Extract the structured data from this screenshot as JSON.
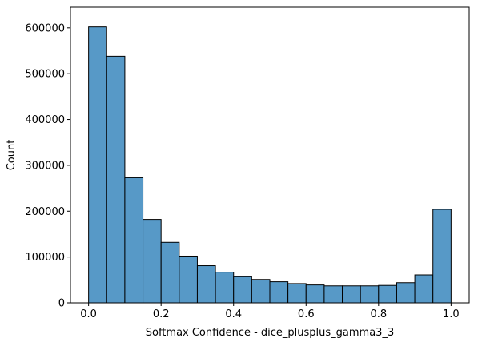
{
  "chart_data": {
    "type": "bar",
    "subtype": "histogram",
    "title": "",
    "xlabel": "Softmax Confidence - dice_plusplus_gamma3_3",
    "ylabel": "Count",
    "bin_edges": [
      0.0,
      0.05,
      0.1,
      0.15,
      0.2,
      0.25,
      0.3,
      0.35,
      0.4,
      0.45,
      0.5,
      0.55,
      0.6,
      0.65,
      0.7,
      0.75,
      0.8,
      0.85,
      0.9,
      0.95,
      1.0
    ],
    "values": [
      602000,
      538000,
      273000,
      182000,
      132000,
      102000,
      81000,
      67000,
      57000,
      51000,
      46000,
      42000,
      39000,
      37000,
      37000,
      37000,
      38000,
      44000,
      61000,
      204000
    ],
    "xlim": [
      -0.05,
      1.05
    ],
    "ylim": [
      0,
      645000
    ],
    "xticks": [
      0.0,
      0.2,
      0.4,
      0.6,
      0.8,
      1.0
    ],
    "xtick_labels": [
      "0.0",
      "0.2",
      "0.4",
      "0.6",
      "0.8",
      "1.0"
    ],
    "yticks": [
      0,
      100000,
      200000,
      300000,
      400000,
      500000,
      600000
    ],
    "ytick_labels": [
      "0",
      "100000",
      "200000",
      "300000",
      "400000",
      "500000",
      "600000"
    ],
    "grid": false,
    "legend": "none",
    "colors": {
      "bar_fill": "#5799c7",
      "bar_edge": "#000000",
      "axes": "#000000"
    }
  }
}
